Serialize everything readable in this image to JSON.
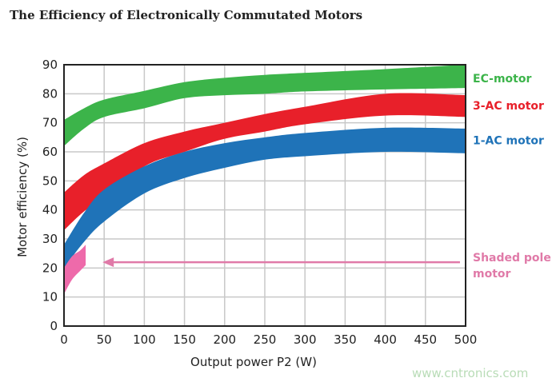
{
  "chart_data": {
    "type": "area",
    "title": "The Efficiency of Electronically Commutated Motors",
    "xlabel": "Output power P2 (W)",
    "ylabel": "Motor efficiency (%)",
    "xlim": [
      0,
      500
    ],
    "ylim": [
      0,
      90
    ],
    "xticks": [
      "0",
      "50",
      "100",
      "150",
      "200",
      "250",
      "300",
      "350",
      "400",
      "450",
      "500"
    ],
    "yticks": [
      "0",
      "10",
      "20",
      "30",
      "40",
      "50",
      "60",
      "70",
      "80",
      "90"
    ],
    "grid": true,
    "legend_placement": "right",
    "series": [
      {
        "name": "EC-motor",
        "color": "#3cb44a",
        "x": [
          0,
          25,
          50,
          100,
          150,
          200,
          250,
          300,
          400,
          500
        ],
        "upper": [
          71,
          75,
          78,
          81,
          84,
          85.5,
          86.5,
          87.2,
          88.5,
          90
        ],
        "lower": [
          62,
          68,
          72,
          75,
          78.5,
          79.5,
          80,
          80.8,
          81.5,
          82
        ]
      },
      {
        "name": "3-AC motor",
        "color": "#e8202a",
        "x": [
          0,
          25,
          50,
          100,
          150,
          200,
          250,
          300,
          400,
          500
        ],
        "upper": [
          46,
          52,
          56,
          63,
          67,
          70,
          73,
          75.5,
          80,
          79.5
        ],
        "lower": [
          33,
          39.5,
          44,
          55,
          60,
          64.5,
          67,
          69.5,
          72.5,
          72
        ]
      },
      {
        "name": "1-AC motor",
        "color": "#1f73b8",
        "x": [
          0,
          25,
          50,
          100,
          150,
          200,
          250,
          300,
          400,
          500
        ],
        "upper": [
          28,
          39,
          47,
          55,
          60,
          63,
          65,
          66.5,
          68.3,
          68
        ],
        "lower": [
          20,
          29,
          36,
          45.7,
          51,
          54.5,
          57.3,
          58.5,
          60,
          59.5
        ]
      },
      {
        "name": "Shaded pole motor",
        "color": "#ee6aaa",
        "x": [
          0,
          10,
          20,
          27
        ],
        "upper": [
          20,
          24,
          26,
          28
        ],
        "lower": [
          11,
          16,
          19,
          21
        ]
      }
    ],
    "annotation": {
      "arrow_from_x": 493,
      "arrow_to_x": 48,
      "y": 22,
      "color": "#e07aa8",
      "label": [
        "Shaded pole",
        "motor"
      ]
    }
  },
  "watermark": "www.cntronics.com"
}
